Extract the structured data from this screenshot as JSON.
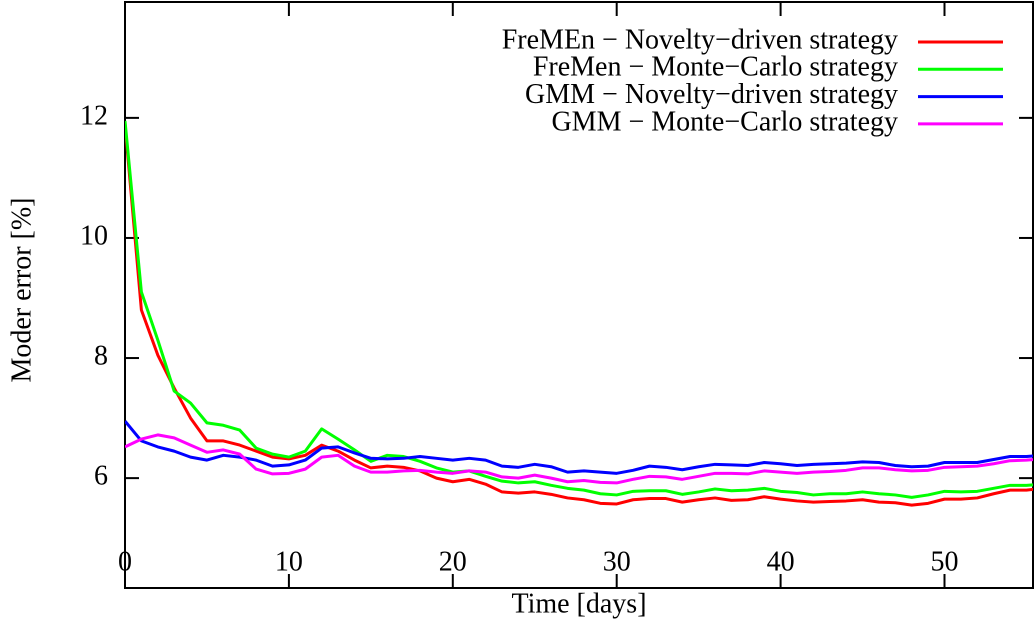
{
  "chart_data": {
    "type": "line",
    "x_label": "Time [days]",
    "y_label": "Moder error [%]",
    "x": [
      0,
      1,
      2,
      3,
      4,
      5,
      6,
      7,
      8,
      9,
      10,
      11,
      12,
      13,
      14,
      15,
      16,
      17,
      18,
      19,
      20,
      21,
      22,
      23,
      24,
      25,
      26,
      27,
      28,
      29,
      30,
      31,
      32,
      33,
      34,
      35,
      36,
      37,
      38,
      39,
      40,
      41,
      42,
      43,
      44,
      45,
      46,
      47,
      48,
      49,
      50,
      51,
      52,
      53,
      54,
      55,
      56
    ],
    "series": [
      {
        "name": "FreMEn − Novelty−driven strategy",
        "color": "#ff0000",
        "values": [
          11.9,
          8.8,
          8.05,
          7.5,
          7.0,
          6.62,
          6.62,
          6.55,
          6.45,
          6.35,
          6.32,
          6.38,
          6.55,
          6.45,
          6.3,
          6.17,
          6.2,
          6.18,
          6.12,
          6.0,
          5.94,
          5.98,
          5.9,
          5.77,
          5.75,
          5.77,
          5.73,
          5.67,
          5.64,
          5.58,
          5.57,
          5.64,
          5.66,
          5.66,
          5.6,
          5.64,
          5.67,
          5.63,
          5.64,
          5.69,
          5.65,
          5.62,
          5.6,
          5.61,
          5.62,
          5.64,
          5.6,
          5.59,
          5.55,
          5.58,
          5.65,
          5.65,
          5.67,
          5.74,
          5.8,
          5.8,
          5.83
        ]
      },
      {
        "name": "FreMen − Monte−Carlo strategy",
        "color": "#00ff00",
        "values": [
          11.95,
          9.1,
          8.3,
          7.45,
          7.25,
          6.92,
          6.88,
          6.8,
          6.5,
          6.4,
          6.35,
          6.45,
          6.82,
          6.65,
          6.47,
          6.28,
          6.38,
          6.36,
          6.28,
          6.17,
          6.1,
          6.12,
          6.03,
          5.95,
          5.92,
          5.94,
          5.88,
          5.83,
          5.8,
          5.74,
          5.72,
          5.78,
          5.79,
          5.79,
          5.73,
          5.77,
          5.82,
          5.79,
          5.8,
          5.83,
          5.78,
          5.76,
          5.72,
          5.74,
          5.74,
          5.77,
          5.74,
          5.72,
          5.68,
          5.72,
          5.78,
          5.77,
          5.78,
          5.83,
          5.88,
          5.88,
          5.9
        ]
      },
      {
        "name": "GMM − Novelty−driven strategy",
        "color": "#0000ff",
        "values": [
          6.95,
          6.62,
          6.52,
          6.45,
          6.35,
          6.3,
          6.38,
          6.35,
          6.3,
          6.2,
          6.22,
          6.3,
          6.5,
          6.52,
          6.42,
          6.33,
          6.32,
          6.33,
          6.36,
          6.33,
          6.3,
          6.33,
          6.3,
          6.2,
          6.18,
          6.23,
          6.19,
          6.1,
          6.12,
          6.1,
          6.08,
          6.13,
          6.2,
          6.18,
          6.14,
          6.19,
          6.23,
          6.22,
          6.21,
          6.26,
          6.24,
          6.21,
          6.23,
          6.24,
          6.25,
          6.27,
          6.26,
          6.21,
          6.19,
          6.2,
          6.26,
          6.26,
          6.26,
          6.31,
          6.36,
          6.36,
          6.38
        ]
      },
      {
        "name": "GMM − Monte−Carlo strategy",
        "color": "#ff00ff",
        "values": [
          6.52,
          6.65,
          6.72,
          6.67,
          6.55,
          6.43,
          6.47,
          6.4,
          6.15,
          6.07,
          6.08,
          6.15,
          6.35,
          6.38,
          6.2,
          6.1,
          6.1,
          6.12,
          6.13,
          6.1,
          6.08,
          6.12,
          6.1,
          6.02,
          6.0,
          6.05,
          6.0,
          5.94,
          5.96,
          5.93,
          5.92,
          5.98,
          6.03,
          6.02,
          5.98,
          6.03,
          6.08,
          6.08,
          6.07,
          6.12,
          6.1,
          6.08,
          6.1,
          6.11,
          6.13,
          6.17,
          6.17,
          6.14,
          6.12,
          6.13,
          6.18,
          6.19,
          6.2,
          6.24,
          6.29,
          6.3,
          6.32
        ]
      }
    ],
    "xlim": [
      0,
      55.4
    ],
    "xticks": [
      0,
      10,
      20,
      30,
      40,
      50
    ],
    "ylim": [
      4.17,
      13.93
    ],
    "yticks": [
      6,
      8,
      10,
      12
    ],
    "grid": false,
    "legend": "top-right"
  }
}
